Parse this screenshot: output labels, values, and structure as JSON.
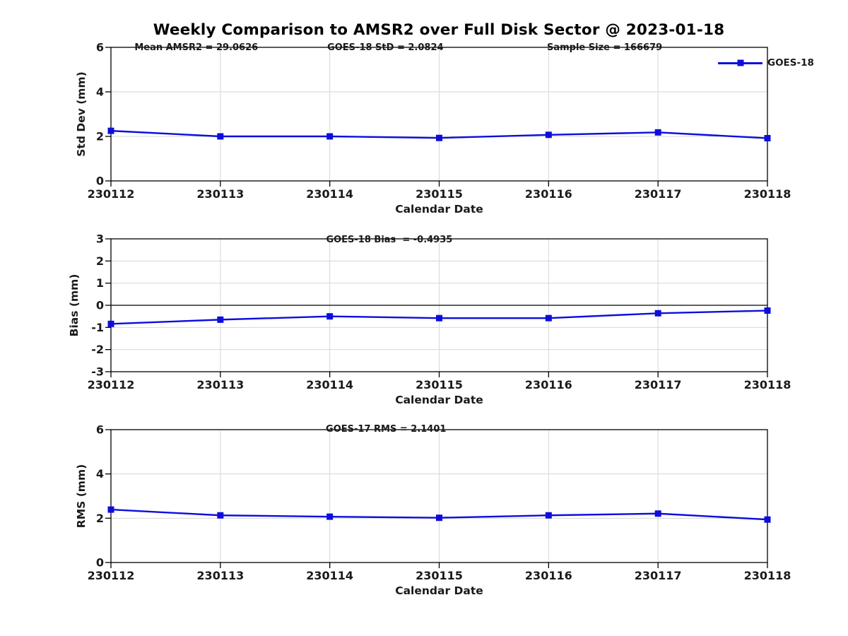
{
  "figure": {
    "title": "Weekly Comparison to AMSR2 over Full Disk Sector @ 2023-01-18",
    "legend": {
      "label": "GOES-18",
      "position": "top-right",
      "marker": "filled-square",
      "box": "off"
    }
  },
  "colors": {
    "line": "#0d0ddd",
    "marker": "#0d0ddd",
    "grid": "#d6d6d6",
    "axis": "#000000",
    "text": "#1a1a1a",
    "zero_line": "#000000",
    "background": "#ffffff"
  },
  "chart_data": [
    {
      "type": "line",
      "id": "std-dev",
      "annotations": [
        "Mean AMSR2 = 29.0626",
        "GOES-18 StD = 2.0824",
        "Sample Size = 166679"
      ],
      "categories": [
        "230112",
        "230113",
        "230114",
        "230115",
        "230116",
        "230117",
        "230118"
      ],
      "series": [
        {
          "name": "GOES-18",
          "values": [
            2.25,
            2.0,
            2.0,
            1.93,
            2.07,
            2.18,
            1.92
          ]
        }
      ],
      "xlabel": "Calendar Date",
      "ylabel": "Std Dev (mm)",
      "ylim": [
        0,
        6
      ],
      "yticks": [
        0,
        2,
        4,
        6
      ],
      "grid": true,
      "zero_line": false,
      "marker": "square",
      "legend_entries": [
        "GOES-18"
      ]
    },
    {
      "type": "line",
      "id": "bias",
      "annotations": [
        "GOES-18 Bias  = -0.4935"
      ],
      "categories": [
        "230112",
        "230113",
        "230114",
        "230115",
        "230116",
        "230117",
        "230118"
      ],
      "series": [
        {
          "name": "GOES-18",
          "values": [
            -0.84,
            -0.65,
            -0.5,
            -0.58,
            -0.58,
            -0.36,
            -0.24
          ]
        }
      ],
      "xlabel": "Calendar Date",
      "ylabel": "Bias (mm)",
      "ylim": [
        -3,
        3
      ],
      "yticks": [
        -3,
        -2,
        -1,
        0,
        1,
        2,
        3
      ],
      "grid": true,
      "zero_line": true,
      "marker": "square",
      "legend_entries": []
    },
    {
      "type": "line",
      "id": "rms",
      "annotations": [
        "GOES-17 RMS = 2.1401"
      ],
      "categories": [
        "230112",
        "230113",
        "230114",
        "230115",
        "230116",
        "230117",
        "230118"
      ],
      "series": [
        {
          "name": "GOES-18",
          "values": [
            2.39,
            2.13,
            2.07,
            2.02,
            2.13,
            2.21,
            1.94
          ]
        }
      ],
      "xlabel": "Calendar Date",
      "ylabel": "RMS (mm)",
      "ylim": [
        0,
        6
      ],
      "yticks": [
        0,
        2,
        4,
        6
      ],
      "grid": true,
      "zero_line": false,
      "marker": "square",
      "legend_entries": []
    }
  ]
}
